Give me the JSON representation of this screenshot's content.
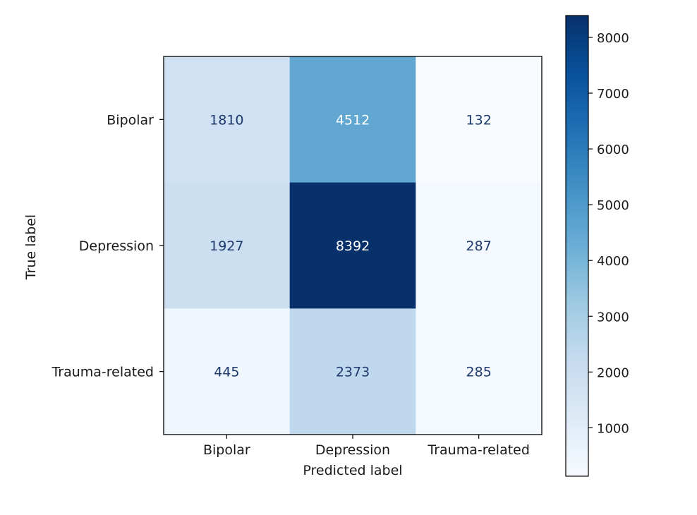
{
  "chart_data": {
    "type": "heatmap",
    "title": "",
    "xlabel": "Predicted label",
    "ylabel": "True label",
    "x_categories": [
      "Bipolar",
      "Depression",
      "Trauma-related"
    ],
    "y_categories": [
      "Bipolar",
      "Depression",
      "Trauma-related"
    ],
    "values": [
      [
        1810,
        4512,
        132
      ],
      [
        1927,
        8392,
        287
      ],
      [
        445,
        2373,
        285
      ]
    ],
    "colormap": "Blues",
    "colormap_stops": [
      "#f7fbff",
      "#deebf7",
      "#c6dbef",
      "#9ecae1",
      "#6baed6",
      "#4292c6",
      "#2171b5",
      "#08519c",
      "#08306b"
    ],
    "color_range": [
      132,
      8392
    ],
    "colorbar": {
      "ticks": [
        1000,
        2000,
        3000,
        4000,
        5000,
        6000,
        7000,
        8000
      ],
      "tick_labels": [
        "1000",
        "2000",
        "3000",
        "4000",
        "5000",
        "6000",
        "7000",
        "8000"
      ]
    },
    "text_color_dark": "#1f3a6e",
    "text_color_light": "#ffffff",
    "grid": false
  }
}
